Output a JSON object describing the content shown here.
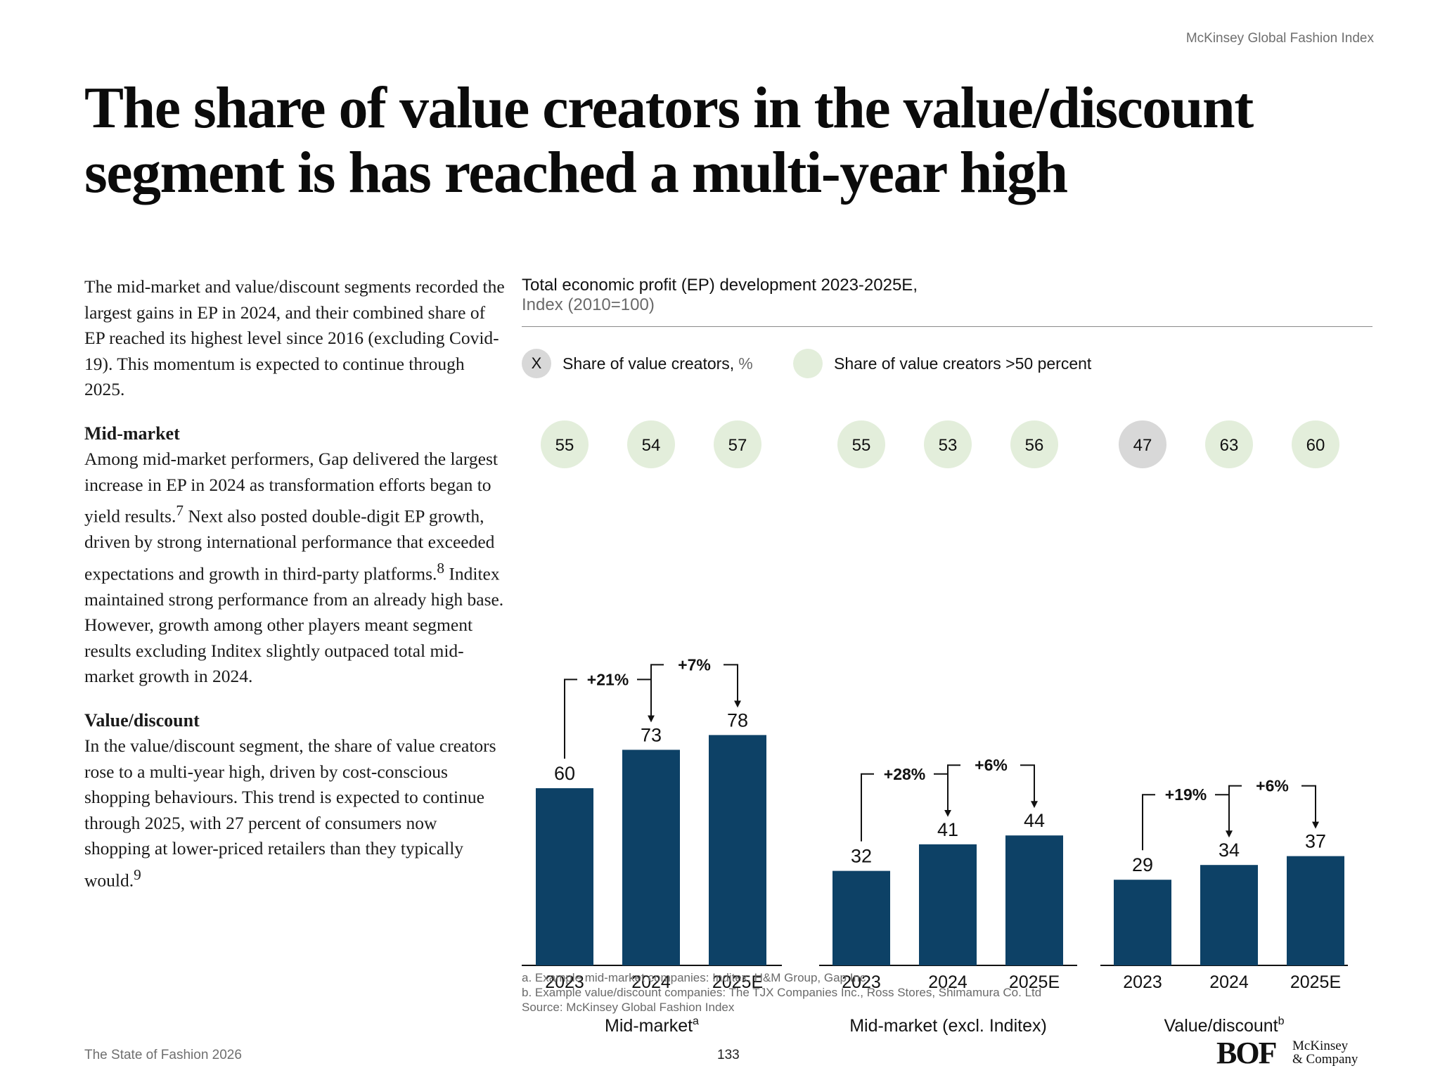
{
  "header": {
    "source_label": "McKinsey Global Fashion Index"
  },
  "title_lines": [
    "The share of value creators in the value/discount",
    "segment is has reached a multi-year high"
  ],
  "body": {
    "intro": "The mid-market and value/discount segments recorded the largest gains in EP in 2024, and their combined share of EP reached its highest level since 2016 (excluding Covid-19). This momentum is expected to continue through 2025.",
    "section1_heading": "Mid-market",
    "section1_text_a": "Among mid-market performers, Gap delivered the largest increase in EP in 2024 as transformation efforts began to yield results.",
    "section1_fn1": "7",
    "section1_text_b": " Next also posted double-digit EP growth, driven by strong international performance that exceeded expectations and growth in third-party platforms.",
    "section1_fn2": "8",
    "section1_text_c": " Inditex maintained strong performance from an already high base. However, growth among other players meant segment results excluding Inditex slightly outpaced total mid-market growth in 2024.",
    "section2_heading": "Value/discount",
    "section2_text": "In the value/discount segment, the share of value creators rose to a multi-year high, driven by cost-conscious shopping behaviours. This trend is expected to continue through 2025, with 27 percent of consumers now shopping at lower-priced retailers than they typically would.",
    "section2_fn": "9"
  },
  "legend": {
    "marker_symbol": "X",
    "item1_label": "Share of value creators,",
    "item1_unit": "%",
    "item2_label": "Share of value creators >50 percent"
  },
  "colors": {
    "bar": "#0d4166",
    "circle_high": "#e3eedb",
    "circle_low": "#d8d8d8",
    "axis": "#111111"
  },
  "chart_data": {
    "type": "bar",
    "title": "Total economic profit (EP) development 2023-2025E,",
    "subtitle": "Index (2010=100)",
    "ylim": [
      0,
      100
    ],
    "groups": [
      {
        "name": "Mid-market",
        "superscript": "a",
        "categories": [
          "2023",
          "2024",
          "2025E"
        ],
        "values": [
          60,
          73,
          78
        ],
        "share_of_value_creators": [
          55,
          54,
          57
        ],
        "changes": [
          "+21%",
          "+7%"
        ]
      },
      {
        "name": "Mid-market (excl. Inditex)",
        "superscript": "",
        "categories": [
          "2023",
          "2024",
          "2025E"
        ],
        "values": [
          32,
          41,
          44
        ],
        "share_of_value_creators": [
          55,
          53,
          56
        ],
        "changes": [
          "+28%",
          "+6%"
        ]
      },
      {
        "name": "Value/discount",
        "superscript": "b",
        "categories": [
          "2023",
          "2024",
          "2025E"
        ],
        "values": [
          29,
          34,
          37
        ],
        "share_of_value_creators": [
          47,
          63,
          60
        ],
        "changes": [
          "+19%",
          "+6%"
        ]
      }
    ]
  },
  "footnotes": [
    "a. Example mid-market companies: Inditex, H&M Group, Gap Inc.",
    "b. Example value/discount companies: The TJX Companies Inc., Ross Stores, Shimamura Co. Ltd",
    "Source: McKinsey Global Fashion Index"
  ],
  "footer": {
    "publication": "The State of Fashion 2026",
    "page_number": "133",
    "logo_bof": "BOF",
    "logo_mckinsey_line1": "McKinsey",
    "logo_mckinsey_line2": "& Company"
  }
}
